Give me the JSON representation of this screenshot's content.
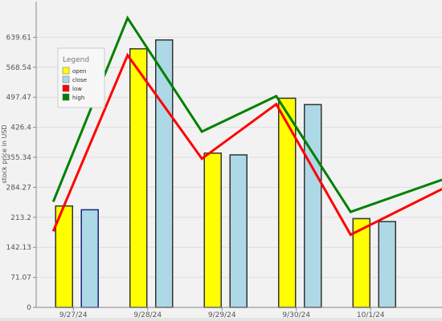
{
  "chart_data": {
    "type": "bar",
    "categories": [
      "9/27/24",
      "9/28/24",
      "9/29/24",
      "9/30/24",
      "10/1/24"
    ],
    "series": [
      {
        "name": "open",
        "kind": "bar",
        "color": "#ffff00",
        "values": [
          240,
          612,
          365,
          495,
          210
        ]
      },
      {
        "name": "close",
        "kind": "bar",
        "color": "#add8e6",
        "values": [
          231,
          633,
          361,
          480,
          203
        ]
      },
      {
        "name": "low",
        "kind": "line",
        "color": "#ff0000",
        "values": [
          180,
          597,
          352,
          481,
          172
        ]
      },
      {
        "name": "high",
        "kind": "line",
        "color": "#008000",
        "values": [
          250,
          685,
          416,
          500,
          226
        ]
      }
    ],
    "trailing_points": {
      "low": 280,
      "high": 302
    },
    "ylabel": "stock price in USD",
    "ylim": [
      0,
      710.5
    ],
    "yticks": [
      "0",
      "71.07",
      "142.13",
      "213.2",
      "284.27",
      "355.34",
      "426.4",
      "497.47",
      "568.54",
      "639.61"
    ],
    "grid": true,
    "legend": {
      "title": "Legend",
      "placement": "upper-left"
    }
  }
}
